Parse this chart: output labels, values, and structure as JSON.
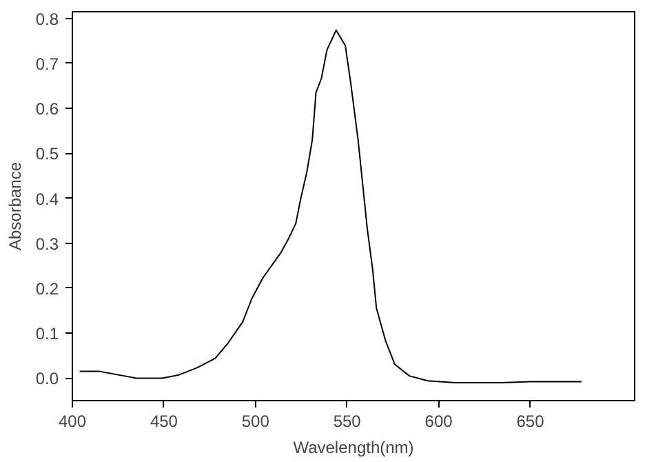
{
  "chart_data": {
    "type": "line",
    "xlabel": "Wavelength(nm)",
    "ylabel": "Absorbance",
    "xlim": [
      400,
      707
    ],
    "ylim": [
      -0.05,
      0.815
    ],
    "xticks": [
      400,
      450,
      500,
      550,
      600,
      650
    ],
    "yticks": [
      {
        "value": 0,
        "label": "0.0"
      },
      0.1,
      0.2,
      0.3,
      0.4,
      0.5,
      0.6,
      0.7,
      0.8
    ],
    "grid": false,
    "marker": "none",
    "line_style": "solid",
    "series": [
      {
        "color": "#000000",
        "x": [
          404,
          415,
          435,
          449,
          458,
          468,
          478,
          485,
          493,
          498,
          504,
          514,
          518,
          522,
          524.5,
          528,
          531,
          533,
          536,
          539,
          544,
          549,
          552,
          556,
          561,
          564,
          566,
          571,
          576,
          584,
          594,
          609,
          634,
          649,
          678
        ],
        "values": [
          0.015,
          0.015,
          0.0,
          0.0,
          0.007,
          0.023,
          0.044,
          0.078,
          0.125,
          0.177,
          0.223,
          0.28,
          0.31,
          0.344,
          0.396,
          0.458,
          0.53,
          0.635,
          0.667,
          0.73,
          0.774,
          0.74,
          0.656,
          0.53,
          0.333,
          0.24,
          0.156,
          0.083,
          0.031,
          0.005,
          -0.006,
          -0.01,
          -0.01,
          -0.008,
          -0.008
        ]
      }
    ]
  }
}
